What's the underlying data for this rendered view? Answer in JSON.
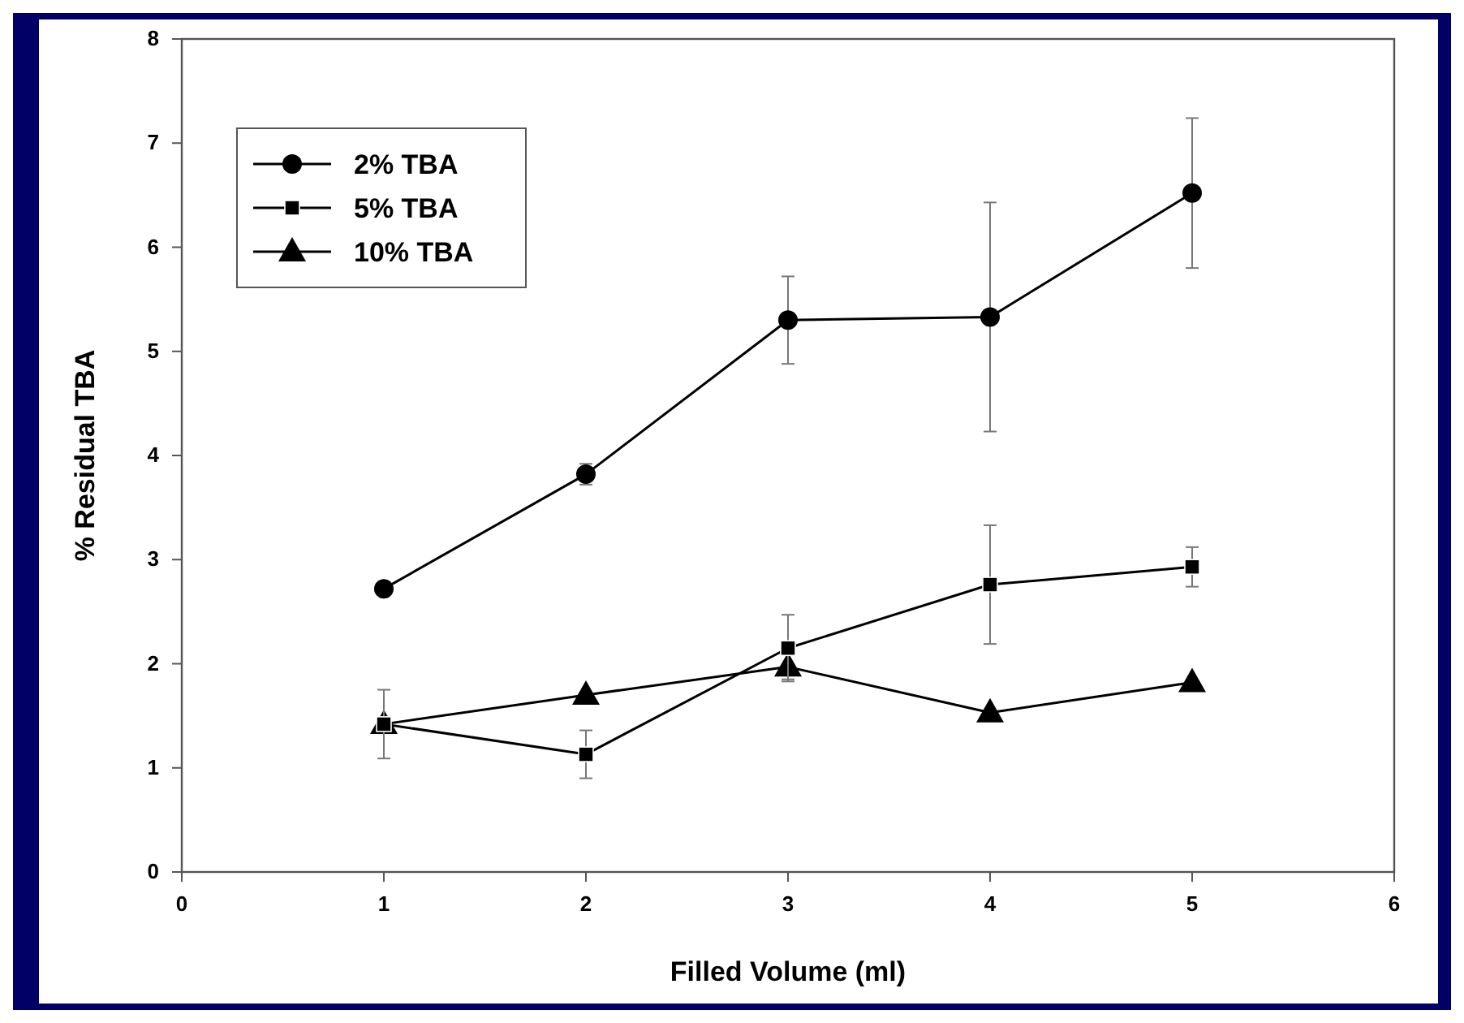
{
  "chart_data": {
    "type": "line",
    "xlabel": "Filled Volume (ml)",
    "ylabel": "% Residual TBA",
    "x": [
      1,
      2,
      3,
      4,
      5
    ],
    "series": [
      {
        "name": "2% TBA",
        "color": "#000000",
        "marker": "circle",
        "values": [
          2.72,
          3.82,
          5.3,
          5.33,
          6.52
        ],
        "errors": [
          null,
          0.1,
          0.42,
          1.1,
          0.72
        ]
      },
      {
        "name": "5% TBA",
        "color": "#000000",
        "marker": "square",
        "values": [
          1.42,
          1.13,
          2.15,
          2.76,
          2.93
        ],
        "errors": [
          0.33,
          0.23,
          0.32,
          0.57,
          0.19
        ]
      },
      {
        "name": "10% TBA",
        "color": "#000000",
        "marker": "triangle",
        "values": [
          1.42,
          1.7,
          1.97,
          1.53,
          1.82
        ],
        "errors": [
          null,
          null,
          0.12,
          null,
          null
        ]
      }
    ],
    "xlim": [
      0,
      6
    ],
    "xticks": [
      0,
      1,
      2,
      3,
      4,
      5,
      6
    ],
    "ylim": [
      0,
      8
    ],
    "yticks": [
      0,
      1,
      2,
      3,
      4,
      5,
      6,
      7,
      8
    ],
    "legend": "top left",
    "grid": false,
    "line_style": "solid"
  }
}
